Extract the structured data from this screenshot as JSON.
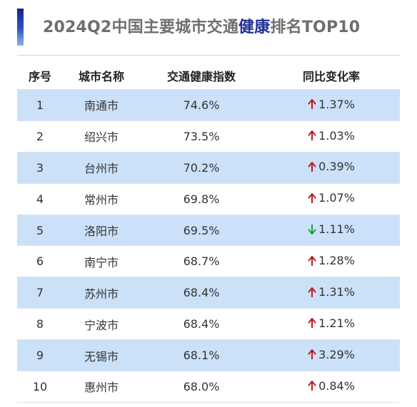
{
  "title": {
    "prefix": "2024Q2中国主要城市交通",
    "highlight": "健康",
    "suffix": "排名TOP10"
  },
  "colors": {
    "up": "#c0191b",
    "down": "#1e9a3c",
    "row_highlight": "#cbe1f8",
    "title_highlight": "#1f2f9a"
  },
  "table": {
    "headers": [
      "序号",
      "城市名称",
      "交通健康指数",
      "同比变化率"
    ],
    "rows": [
      {
        "rank": "1",
        "city": "南通市",
        "index": "74.6%",
        "trend": "up",
        "trend_icon": "arrow-up-icon",
        "change": "1.37%"
      },
      {
        "rank": "2",
        "city": "绍兴市",
        "index": "73.5%",
        "trend": "up",
        "trend_icon": "arrow-up-icon",
        "change": "1.03%"
      },
      {
        "rank": "3",
        "city": "台州市",
        "index": "70.2%",
        "trend": "up",
        "trend_icon": "arrow-up-icon",
        "change": "0.39%"
      },
      {
        "rank": "4",
        "city": "常州市",
        "index": "69.8%",
        "trend": "up",
        "trend_icon": "arrow-up-icon",
        "change": "1.07%"
      },
      {
        "rank": "5",
        "city": "洛阳市",
        "index": "69.5%",
        "trend": "down",
        "trend_icon": "arrow-down-icon",
        "change": "1.11%"
      },
      {
        "rank": "6",
        "city": "南宁市",
        "index": "68.7%",
        "trend": "up",
        "trend_icon": "arrow-up-icon",
        "change": "1.28%"
      },
      {
        "rank": "7",
        "city": "苏州市",
        "index": "68.4%",
        "trend": "up",
        "trend_icon": "arrow-up-icon",
        "change": "1.31%"
      },
      {
        "rank": "8",
        "city": "宁波市",
        "index": "68.4%",
        "trend": "up",
        "trend_icon": "arrow-up-icon",
        "change": "1.21%"
      },
      {
        "rank": "9",
        "city": "无锡市",
        "index": "68.1%",
        "trend": "up",
        "trend_icon": "arrow-up-icon",
        "change": "3.29%"
      },
      {
        "rank": "10",
        "city": "惠州市",
        "index": "68.0%",
        "trend": "up",
        "trend_icon": "arrow-up-icon",
        "change": "0.84%"
      }
    ]
  }
}
